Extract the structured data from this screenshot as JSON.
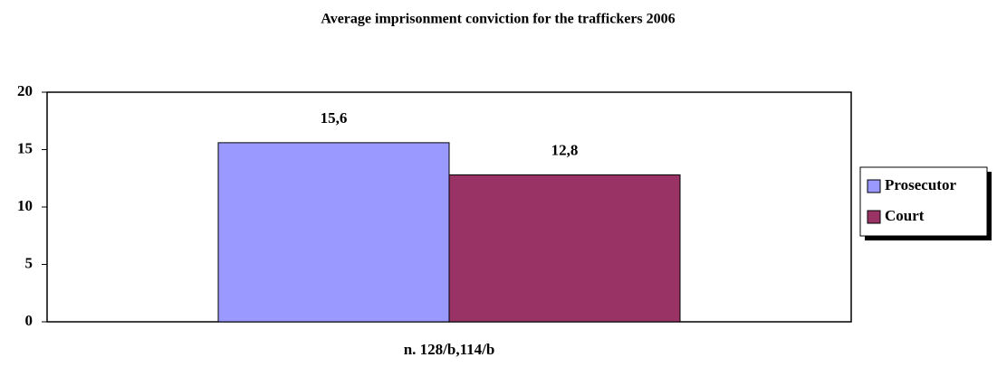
{
  "chart_data": {
    "type": "bar",
    "title": "Average imprisonment conviction for the traffickers 2006",
    "categories": [
      "n. 128/b,114/b"
    ],
    "series": [
      {
        "name": "Prosecutor",
        "color": "#9999ff",
        "values": [
          15.6
        ],
        "value_labels": [
          "15,6"
        ]
      },
      {
        "name": "Court",
        "color": "#993366",
        "values": [
          12.8
        ],
        "value_labels": [
          "12,8"
        ]
      }
    ],
    "ylim": [
      0,
      20
    ],
    "yticks": [
      0,
      5,
      10,
      15,
      20
    ],
    "grid": false,
    "legend": "right"
  }
}
